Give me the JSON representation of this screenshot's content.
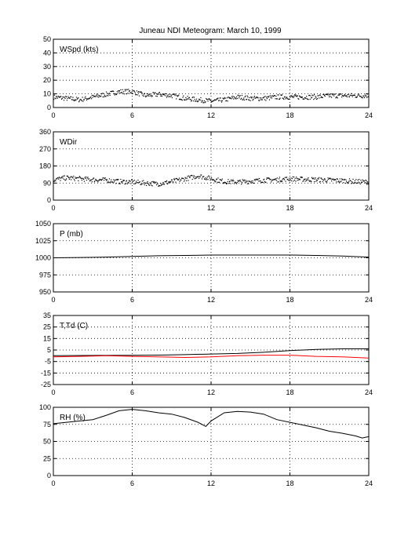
{
  "title": "Juneau NDI Meteogram:      March 10, 1999",
  "chart_data": [
    {
      "type": "scatter",
      "label": "WSpd (kts)",
      "x_ticks": [
        0,
        6,
        12,
        18,
        24
      ],
      "y_ticks": [
        0,
        10,
        20,
        30,
        40,
        50
      ],
      "xlim": [
        0,
        24
      ],
      "ylim": [
        0,
        50
      ],
      "grid": true,
      "series": [
        {
          "color": "#000000",
          "points": [
            [
              0,
              8
            ],
            [
              1,
              7
            ],
            [
              2,
              6
            ],
            [
              3,
              8
            ],
            [
              4,
              10
            ],
            [
              5,
              12
            ],
            [
              6,
              12
            ],
            [
              7,
              9
            ],
            [
              8,
              10
            ],
            [
              9,
              9
            ],
            [
              10,
              7
            ],
            [
              11,
              6
            ],
            [
              12,
              5
            ],
            [
              13,
              6
            ],
            [
              14,
              8
            ],
            [
              15,
              7
            ],
            [
              16,
              7
            ],
            [
              17,
              8
            ],
            [
              18,
              8
            ],
            [
              19,
              8
            ],
            [
              20,
              8
            ],
            [
              21,
              9
            ],
            [
              22,
              9
            ],
            [
              23,
              9
            ],
            [
              24,
              9
            ]
          ]
        }
      ]
    },
    {
      "type": "scatter",
      "label": "WDir",
      "x_ticks": [
        0,
        6,
        12,
        18,
        24
      ],
      "y_ticks": [
        0,
        90,
        180,
        270,
        360
      ],
      "xlim": [
        0,
        24
      ],
      "ylim": [
        0,
        360
      ],
      "grid": true,
      "series": [
        {
          "color": "#000000",
          "points": [
            [
              0,
              110
            ],
            [
              1,
              120
            ],
            [
              2,
              115
            ],
            [
              3,
              110
            ],
            [
              4,
              108
            ],
            [
              5,
              100
            ],
            [
              6,
              98
            ],
            [
              7,
              92
            ],
            [
              8,
              88
            ],
            [
              9,
              100
            ],
            [
              10,
              115
            ],
            [
              11,
              130
            ],
            [
              12,
              115
            ],
            [
              13,
              100
            ],
            [
              14,
              98
            ],
            [
              15,
              102
            ],
            [
              16,
              108
            ],
            [
              17,
              110
            ],
            [
              18,
              115
            ],
            [
              19,
              112
            ],
            [
              20,
              110
            ],
            [
              21,
              108
            ],
            [
              22,
              105
            ],
            [
              23,
              100
            ],
            [
              24,
              98
            ]
          ]
        }
      ]
    },
    {
      "type": "line",
      "label": "P (mb)",
      "x_ticks": [
        0,
        6,
        12,
        18,
        24
      ],
      "y_ticks": [
        950,
        975,
        1000,
        1025,
        1050
      ],
      "xlim": [
        0,
        24
      ],
      "ylim": [
        950,
        1050
      ],
      "grid": true,
      "series": [
        {
          "color": "#000000",
          "points": [
            [
              0,
              1000
            ],
            [
              2,
              1000.5
            ],
            [
              4,
              1001
            ],
            [
              6,
              1002
            ],
            [
              8,
              1003
            ],
            [
              10,
              1003.5
            ],
            [
              12,
              1004
            ],
            [
              14,
              1004
            ],
            [
              16,
              1004
            ],
            [
              18,
              1004
            ],
            [
              20,
              1003.5
            ],
            [
              22,
              1002.5
            ],
            [
              24,
              1001
            ]
          ]
        }
      ]
    },
    {
      "type": "line",
      "label": "T,Td (C)",
      "x_ticks": [
        0,
        6,
        12,
        18,
        24
      ],
      "y_ticks": [
        -25,
        -15,
        -5,
        5,
        15,
        25,
        35
      ],
      "xlim": [
        0,
        24
      ],
      "ylim": [
        -25,
        35
      ],
      "grid": true,
      "series": [
        {
          "color": "#000000",
          "points": [
            [
              0,
              0
            ],
            [
              2,
              0.2
            ],
            [
              4,
              0.3
            ],
            [
              6,
              0.4
            ],
            [
              8,
              0.6
            ],
            [
              10,
              1
            ],
            [
              12,
              1.5
            ],
            [
              14,
              2
            ],
            [
              16,
              3
            ],
            [
              18,
              4.5
            ],
            [
              20,
              5.5
            ],
            [
              22,
              6
            ],
            [
              24,
              6
            ]
          ]
        },
        {
          "color": "#ff0000",
          "points": [
            [
              0,
              -1
            ],
            [
              2,
              -0.5
            ],
            [
              4,
              0
            ],
            [
              6,
              -0.5
            ],
            [
              8,
              -1
            ],
            [
              10,
              -1.5
            ],
            [
              12,
              -1
            ],
            [
              14,
              0
            ],
            [
              16,
              0.5
            ],
            [
              18,
              0.5
            ],
            [
              20,
              -0.5
            ],
            [
              22,
              -1
            ],
            [
              24,
              -2
            ]
          ]
        }
      ]
    },
    {
      "type": "line",
      "label": "RH (%)",
      "x_ticks": [
        0,
        6,
        12,
        18,
        24
      ],
      "y_ticks": [
        0,
        25,
        50,
        75,
        100
      ],
      "xlim": [
        0,
        24
      ],
      "ylim": [
        0,
        100
      ],
      "grid": true,
      "series": [
        {
          "color": "#000000",
          "points": [
            [
              0,
              76
            ],
            [
              1,
              78
            ],
            [
              2,
              80
            ],
            [
              3,
              82
            ],
            [
              4,
              88
            ],
            [
              5,
              95
            ],
            [
              6,
              97
            ],
            [
              7,
              95
            ],
            [
              8,
              92
            ],
            [
              9,
              90
            ],
            [
              10,
              85
            ],
            [
              11,
              78
            ],
            [
              11.6,
              72
            ],
            [
              12,
              80
            ],
            [
              13,
              92
            ],
            [
              14,
              94
            ],
            [
              15,
              93
            ],
            [
              16,
              90
            ],
            [
              17,
              82
            ],
            [
              18,
              78
            ],
            [
              19,
              74
            ],
            [
              20,
              70
            ],
            [
              21,
              65
            ],
            [
              22,
              62
            ],
            [
              23,
              58
            ],
            [
              23.5,
              55
            ],
            [
              24,
              57
            ]
          ]
        }
      ]
    }
  ]
}
